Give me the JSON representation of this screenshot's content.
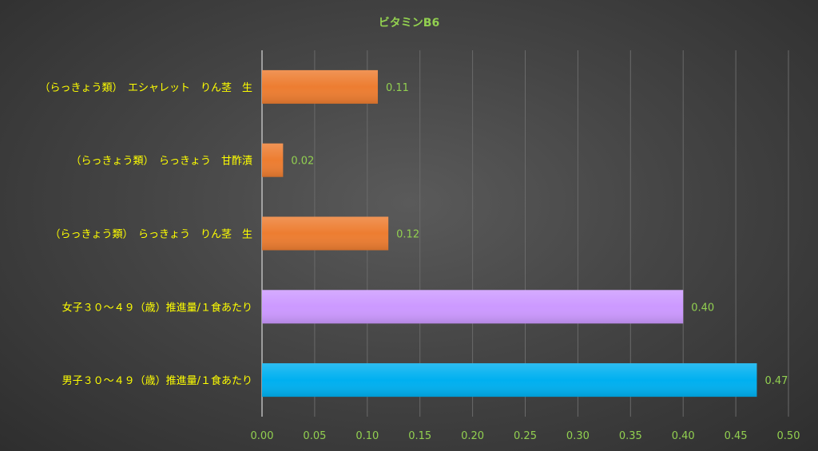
{
  "chart_data": {
    "type": "bar",
    "orientation": "horizontal",
    "title": "ビタミンB6",
    "xlabel": "",
    "ylabel": "",
    "xlim": [
      0,
      0.5
    ],
    "x_ticks": [
      "0.00",
      "0.05",
      "0.10",
      "0.15",
      "0.20",
      "0.25",
      "0.30",
      "0.35",
      "0.40",
      "0.45",
      "0.50"
    ],
    "grid": "vertical",
    "legend": "none",
    "categories": [
      "（らっきょう類）　エシャレット　りん茎　生",
      "（らっきょう類）　らっきょう　甘酢漬",
      "（らっきょう類）　らっきょう　りん茎　生",
      "女子３０～４９（歳）推進量/１食あたり",
      "男子３０～４９（歳）推進量/１食あたり"
    ],
    "values": [
      0.11,
      0.02,
      0.12,
      0.4,
      0.47
    ],
    "value_labels": [
      "0.11",
      "0.02",
      "0.12",
      "0.40",
      "0.47"
    ],
    "bar_colors": [
      "#ed7d31",
      "#ed7d31",
      "#ed7d31",
      "#cc99ff",
      "#00b0f0"
    ]
  },
  "colors": {
    "title": "#92d050",
    "category_label": "#ffff00",
    "tick_label": "#92d050",
    "value_label": "#92d050",
    "grid": "#6a6a6a",
    "axis": "#d9d9d9"
  }
}
